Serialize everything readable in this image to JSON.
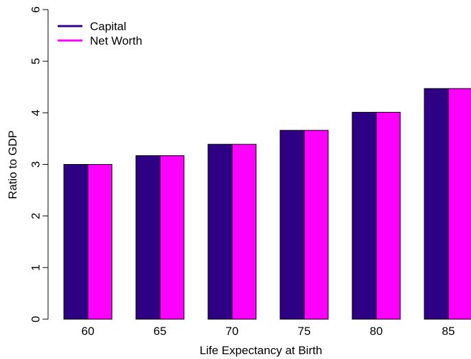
{
  "chart_data": {
    "type": "bar",
    "xlabel": "Life Expectancy at Birth",
    "ylabel": "Ratio to GDP",
    "categories": [
      "60",
      "65",
      "70",
      "75",
      "80",
      "85"
    ],
    "series": [
      {
        "name": "Capital",
        "color": "#2e0084",
        "values": [
          3.0,
          3.17,
          3.39,
          3.66,
          4.01,
          4.47
        ]
      },
      {
        "name": "Net Worth",
        "color": "#ff00ff",
        "values": [
          3.0,
          3.17,
          3.39,
          3.66,
          4.01,
          4.47
        ]
      }
    ],
    "ylim": [
      0,
      6
    ],
    "yticks": [
      "0",
      "1",
      "2",
      "3",
      "4",
      "5",
      "6"
    ],
    "grid": false,
    "legend_position": "top-left"
  }
}
